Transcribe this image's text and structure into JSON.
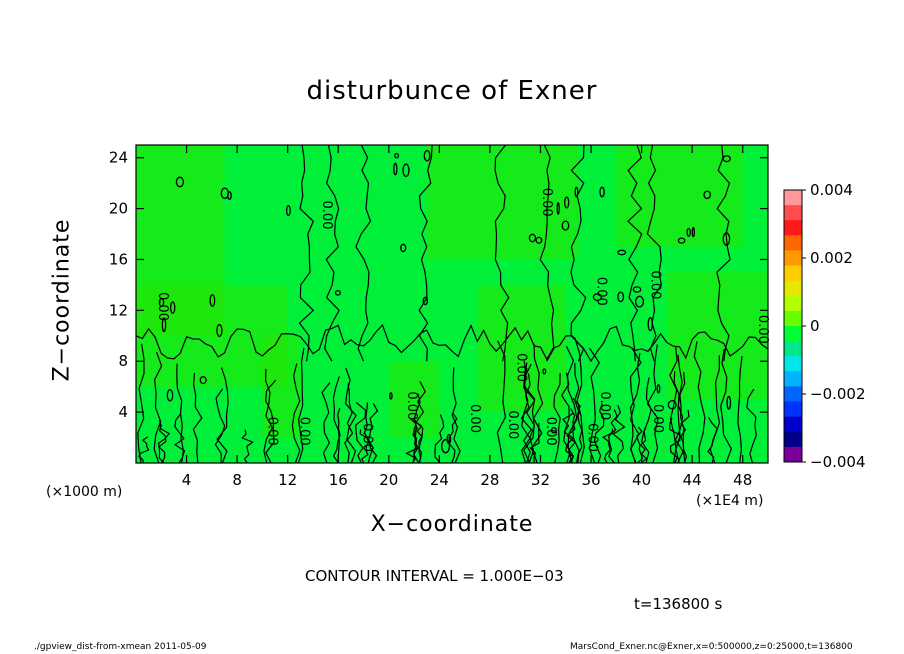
{
  "chart_data": {
    "type": "heatmap",
    "title": "disturbunce of Exner",
    "xlabel": "X−coordinate",
    "ylabel": "Z−coordinate",
    "x_unit_left": "(×1000 m)",
    "x_unit_right": "(×1E4 m)",
    "xlim": [
      0,
      50
    ],
    "ylim": [
      0,
      25
    ],
    "xticks": [
      4,
      8,
      12,
      16,
      20,
      24,
      28,
      32,
      36,
      40,
      44,
      48
    ],
    "yticks": [
      4,
      8,
      12,
      16,
      20,
      24
    ],
    "contour_label": "0.00",
    "colorbar": {
      "ticks": [
        0.004,
        0.002,
        0,
        -0.002,
        -0.004
      ],
      "tick_labels": [
        "0.004",
        "0.002",
        "0",
        "−0.002",
        "−0.004"
      ],
      "range": [
        -0.004,
        0.004
      ],
      "colors": [
        "#ff9999",
        "#ff4d4d",
        "#ff1a1a",
        "#ff6600",
        "#ff9900",
        "#ffcc00",
        "#e6e600",
        "#b3ff00",
        "#66ff00",
        "#00ff33",
        "#00e68a",
        "#00e6e6",
        "#00b3ff",
        "#0066ff",
        "#0033ff",
        "#0000cc",
        "#00008b",
        "#7a0099"
      ]
    },
    "field_color": "#00f03a",
    "contour_interval": "CONTOUR INTERVAL = 1.000E−03",
    "time": "t=136800 s"
  },
  "footer": {
    "left": "./gpview_dist-from-xmean  2011-05-09",
    "right": "MarsCond_Exner.nc@Exner,x=0:500000,z=0:25000,t=136800"
  }
}
